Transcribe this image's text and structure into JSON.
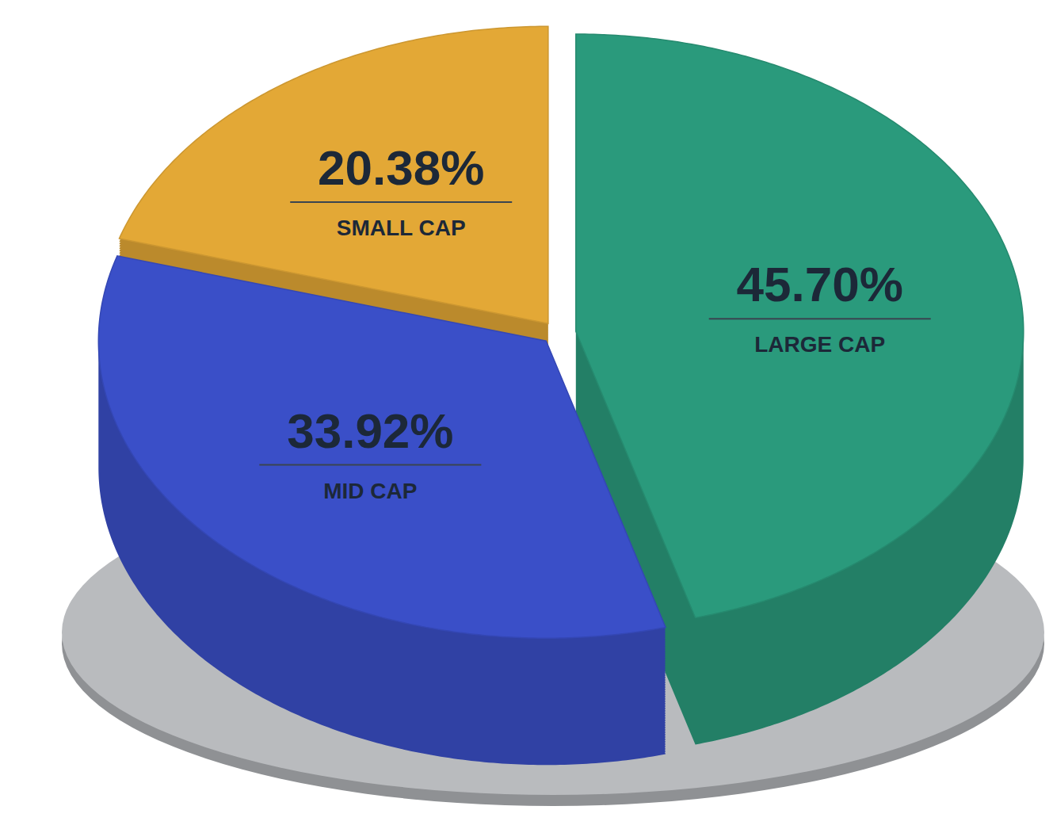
{
  "chart_data": {
    "type": "pie",
    "categories": [
      "LARGE CAP",
      "MID CAP",
      "SMALL CAP"
    ],
    "values": [
      45.7,
      33.92,
      20.38
    ],
    "value_labels": [
      "45.70%",
      "33.92%",
      "20.38%"
    ],
    "colors": [
      "#2a9a7c",
      "#3a4fc8",
      "#e3a836"
    ],
    "data_labels": true
  }
}
